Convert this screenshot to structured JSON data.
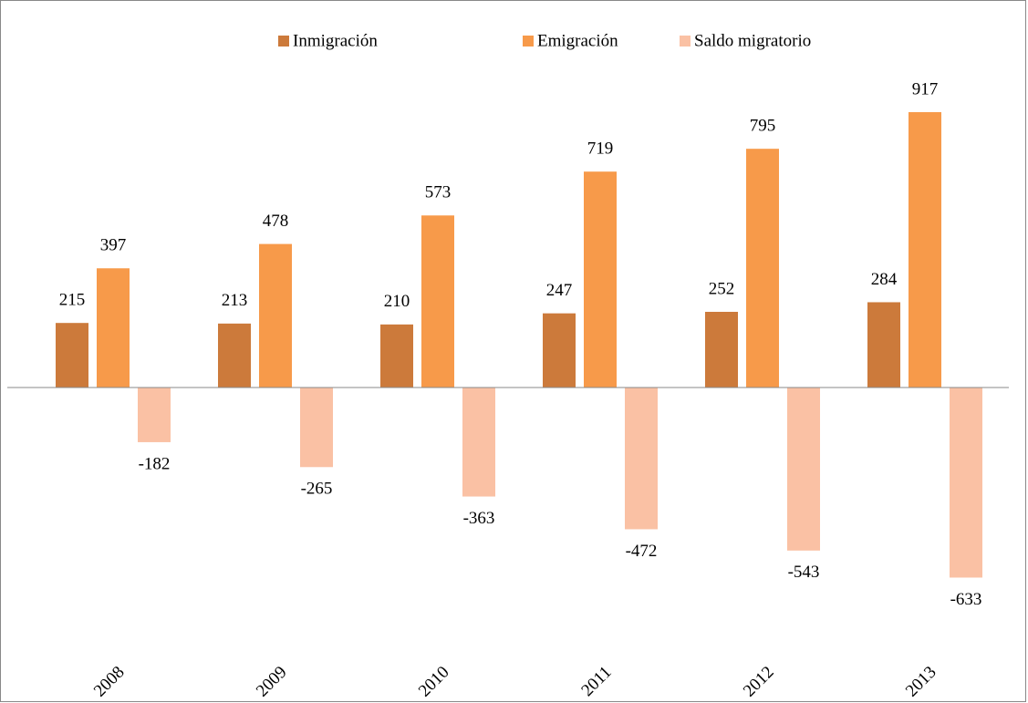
{
  "chart_data": {
    "type": "bar",
    "categories": [
      "2008",
      "2009",
      "2010",
      "2011",
      "2012",
      "2013"
    ],
    "series": [
      {
        "name": "Inmigración",
        "color": "#cc7a3b",
        "values": [
          215,
          213,
          210,
          247,
          252,
          284
        ]
      },
      {
        "name": "Emigración",
        "color": "#f79a4a",
        "values": [
          397,
          478,
          573,
          719,
          795,
          917
        ]
      },
      {
        "name": "Saldo migratorio",
        "color": "#fac1a4",
        "values": [
          -182,
          -265,
          -363,
          -472,
          -543,
          -633
        ]
      }
    ]
  }
}
